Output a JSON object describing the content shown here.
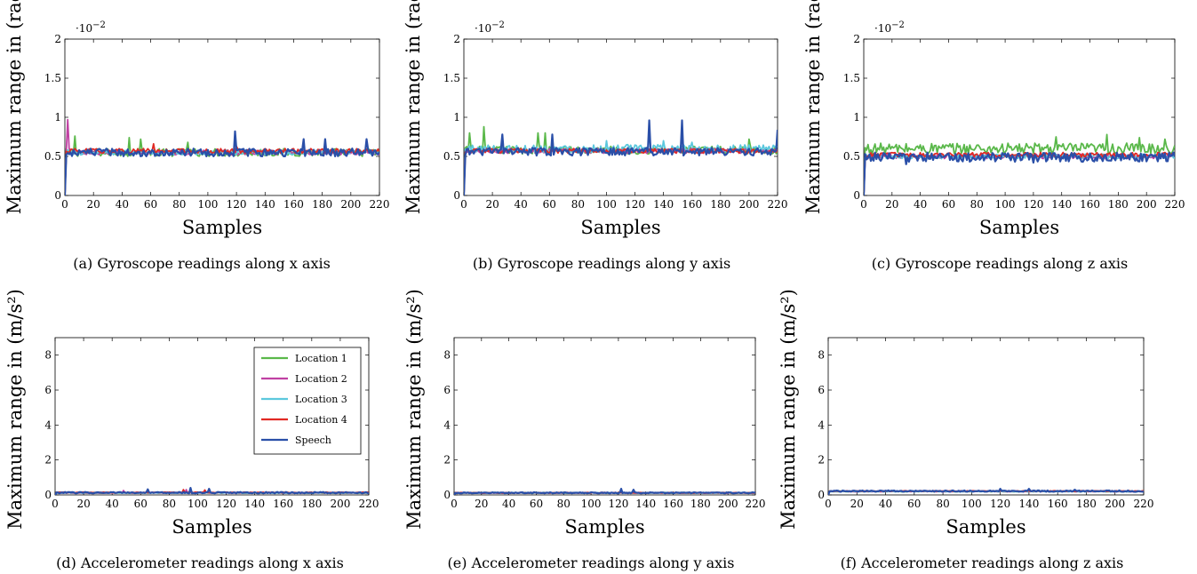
{
  "colors": {
    "Location 1": "#5ab84a",
    "Location 2": "#c041a3",
    "Location 3": "#5cc8dd",
    "Location 4": "#e12a24",
    "Speech": "#2a4fa8"
  },
  "chart_data": [
    {
      "type": "line",
      "caption": "(a) Gyroscope readings along x axis",
      "xlabel": "Samples",
      "ylabel": "Maximum range in (rad/s)",
      "multiplier": "·10",
      "multiplier_exp": "−2",
      "xlim": [
        0,
        220
      ],
      "ylim": [
        0,
        2
      ],
      "xticks": [
        0,
        20,
        40,
        60,
        80,
        100,
        120,
        140,
        160,
        180,
        200,
        220
      ],
      "yticks": [
        0,
        0.5,
        1,
        1.5,
        2
      ],
      "ytick_labels": [
        "0",
        "0.5",
        "1",
        "1.5",
        "2"
      ],
      "series": [
        {
          "name": "Location 1",
          "baseline": 0.55,
          "noise": 0.05,
          "spikes": [
            [
              7,
              0.76
            ],
            [
              45,
              0.74
            ],
            [
              53,
              0.72
            ],
            [
              86,
              0.68
            ]
          ]
        },
        {
          "name": "Location 2",
          "baseline": 0.55,
          "noise": 0.03,
          "spikes": [
            [
              2,
              0.97
            ],
            [
              3,
              0.6
            ]
          ]
        },
        {
          "name": "Location 3",
          "baseline": 0.55,
          "noise": 0.03,
          "spikes": []
        },
        {
          "name": "Location 4",
          "baseline": 0.57,
          "noise": 0.03,
          "spikes": [
            [
              62,
              0.66
            ],
            [
              120,
              0.63
            ]
          ]
        },
        {
          "name": "Speech",
          "baseline": 0.55,
          "noise": 0.05,
          "spikes": [
            [
              119,
              0.82
            ],
            [
              167,
              0.72
            ],
            [
              182,
              0.72
            ],
            [
              211,
              0.72
            ]
          ]
        }
      ]
    },
    {
      "type": "line",
      "caption": "(b) Gyroscope readings along y axis",
      "xlabel": "Samples",
      "ylabel": "Maximum range in (rad/s)",
      "multiplier": "·10",
      "multiplier_exp": "−2",
      "xlim": [
        0,
        220
      ],
      "ylim": [
        0,
        2
      ],
      "xticks": [
        0,
        20,
        40,
        60,
        80,
        100,
        120,
        140,
        160,
        180,
        200,
        220
      ],
      "yticks": [
        0,
        0.5,
        1,
        1.5,
        2
      ],
      "ytick_labels": [
        "0",
        "0.5",
        "1",
        "1.5",
        "2"
      ],
      "series": [
        {
          "name": "Location 1",
          "baseline": 0.58,
          "noise": 0.05,
          "spikes": [
            [
              4,
              0.8
            ],
            [
              14,
              0.88
            ],
            [
              52,
              0.8
            ],
            [
              57,
              0.8
            ],
            [
              200,
              0.72
            ]
          ]
        },
        {
          "name": "Location 2",
          "baseline": 0.57,
          "noise": 0.03,
          "spikes": []
        },
        {
          "name": "Location 3",
          "baseline": 0.6,
          "noise": 0.05,
          "spikes": [
            [
              100,
              0.7
            ],
            [
              140,
              0.7
            ],
            [
              160,
              0.68
            ]
          ]
        },
        {
          "name": "Location 4",
          "baseline": 0.57,
          "noise": 0.03,
          "spikes": []
        },
        {
          "name": "Speech",
          "baseline": 0.56,
          "noise": 0.05,
          "spikes": [
            [
              27,
              0.78
            ],
            [
              62,
              0.78
            ],
            [
              130,
              0.96
            ],
            [
              153,
              0.96
            ],
            [
              220,
              0.84
            ]
          ]
        }
      ]
    },
    {
      "type": "line",
      "caption": "(c) Gyroscope readings along z axis",
      "xlabel": "Samples",
      "ylabel": "Maximum range in (rad/s)",
      "multiplier": "·10",
      "multiplier_exp": "−2",
      "xlim": [
        0,
        220
      ],
      "ylim": [
        0,
        2
      ],
      "xticks": [
        0,
        20,
        40,
        60,
        80,
        100,
        120,
        140,
        160,
        180,
        200,
        220
      ],
      "yticks": [
        0,
        0.5,
        1,
        1.5,
        2
      ],
      "ytick_labels": [
        "0",
        "0.5",
        "1",
        "1.5",
        "2"
      ],
      "series": [
        {
          "name": "Location 1",
          "baseline": 0.6,
          "noise": 0.07,
          "spikes": [
            [
              136,
              0.75
            ],
            [
              172,
              0.78
            ],
            [
              195,
              0.74
            ],
            [
              213,
              0.72
            ]
          ]
        },
        {
          "name": "Location 2",
          "baseline": 0.5,
          "noise": 0.03,
          "spikes": []
        },
        {
          "name": "Location 3",
          "baseline": 0.5,
          "noise": 0.03,
          "spikes": []
        },
        {
          "name": "Location 4",
          "baseline": 0.52,
          "noise": 0.03,
          "spikes": []
        },
        {
          "name": "Speech",
          "baseline": 0.49,
          "noise": 0.06,
          "spikes": [
            [
              30,
              0.4
            ],
            [
              120,
              0.42
            ]
          ]
        }
      ]
    },
    {
      "type": "line",
      "caption": "(d) Accelerometer readings along x axis",
      "xlabel": "Samples",
      "ylabel": "Maximum range in (m/s²)",
      "xlim": [
        0,
        220
      ],
      "ylim": [
        0,
        9
      ],
      "xticks": [
        0,
        20,
        40,
        60,
        80,
        100,
        120,
        140,
        160,
        180,
        200,
        220
      ],
      "yticks": [
        0,
        2,
        4,
        6,
        8
      ],
      "ytick_labels": [
        "0",
        "2",
        "4",
        "6",
        "8"
      ],
      "legend": true,
      "series": [
        {
          "name": "Location 1",
          "baseline": 0.12,
          "noise": 0.02,
          "spikes": []
        },
        {
          "name": "Location 2",
          "baseline": 0.12,
          "noise": 0.02,
          "spikes": [
            [
              48,
              0.25
            ],
            [
              92,
              0.3
            ]
          ]
        },
        {
          "name": "Location 3",
          "baseline": 0.12,
          "noise": 0.02,
          "spikes": []
        },
        {
          "name": "Location 4",
          "baseline": 0.14,
          "noise": 0.02,
          "spikes": [
            [
              90,
              0.3
            ],
            [
              105,
              0.28
            ]
          ]
        },
        {
          "name": "Speech",
          "baseline": 0.13,
          "noise": 0.04,
          "spikes": [
            [
              65,
              0.32
            ],
            [
              95,
              0.4
            ],
            [
              108,
              0.35
            ]
          ]
        }
      ]
    },
    {
      "type": "line",
      "caption": "(e) Accelerometer readings along y axis",
      "xlabel": "Samples",
      "ylabel": "Maximum range in (m/s²)",
      "xlim": [
        0,
        220
      ],
      "ylim": [
        0,
        9
      ],
      "xticks": [
        0,
        20,
        40,
        60,
        80,
        100,
        120,
        140,
        160,
        180,
        200,
        220
      ],
      "yticks": [
        0,
        2,
        4,
        6,
        8
      ],
      "ytick_labels": [
        "0",
        "2",
        "4",
        "6",
        "8"
      ],
      "series": [
        {
          "name": "Location 1",
          "baseline": 0.12,
          "noise": 0.02,
          "spikes": []
        },
        {
          "name": "Location 2",
          "baseline": 0.12,
          "noise": 0.02,
          "spikes": []
        },
        {
          "name": "Location 3",
          "baseline": 0.12,
          "noise": 0.02,
          "spikes": []
        },
        {
          "name": "Location 4",
          "baseline": 0.12,
          "noise": 0.02,
          "spikes": []
        },
        {
          "name": "Speech",
          "baseline": 0.12,
          "noise": 0.03,
          "spikes": [
            [
              122,
              0.35
            ],
            [
              131,
              0.3
            ]
          ]
        }
      ]
    },
    {
      "type": "line",
      "caption": "(f) Accelerometer readings along z axis",
      "xlabel": "Samples",
      "ylabel": "Maximum range in (m/s²)",
      "xlim": [
        0,
        220
      ],
      "ylim": [
        0,
        9
      ],
      "xticks": [
        0,
        20,
        40,
        60,
        80,
        100,
        120,
        140,
        160,
        180,
        200,
        220
      ],
      "yticks": [
        0,
        2,
        4,
        6,
        8
      ],
      "ytick_labels": [
        "0",
        "2",
        "4",
        "6",
        "8"
      ],
      "series": [
        {
          "name": "Location 1",
          "baseline": 0.2,
          "noise": 0.02,
          "spikes": []
        },
        {
          "name": "Location 2",
          "baseline": 0.2,
          "noise": 0.02,
          "spikes": []
        },
        {
          "name": "Location 3",
          "baseline": 0.2,
          "noise": 0.02,
          "spikes": []
        },
        {
          "name": "Location 4",
          "baseline": 0.22,
          "noise": 0.02,
          "spikes": []
        },
        {
          "name": "Speech",
          "baseline": 0.22,
          "noise": 0.04,
          "spikes": [
            [
              120,
              0.35
            ],
            [
              140,
              0.35
            ],
            [
              172,
              0.3
            ]
          ]
        }
      ]
    }
  ]
}
